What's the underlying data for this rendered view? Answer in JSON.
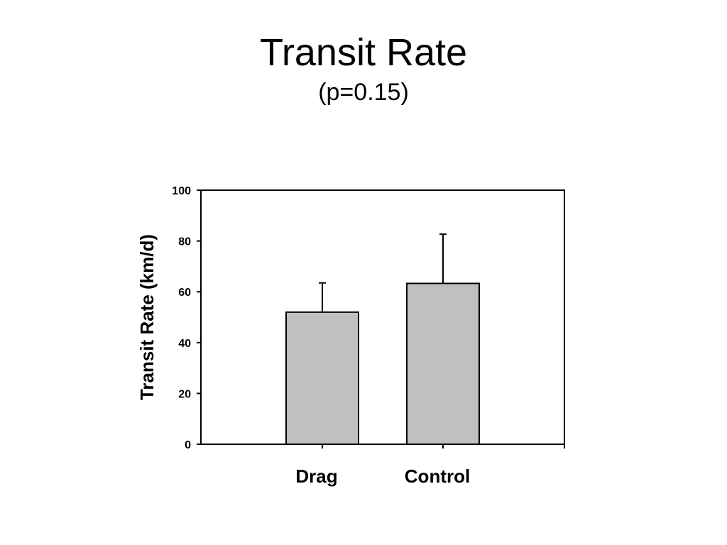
{
  "chart_data": {
    "type": "bar",
    "title": "Transit Rate",
    "subtitle": "(p=0.15)",
    "ylabel": "Transit Rate (km/d)",
    "xlabel": "",
    "categories": [
      "Drag",
      "Control"
    ],
    "values": [
      52,
      63.3
    ],
    "error_upper": [
      11.5,
      19.4
    ],
    "ylim": [
      0,
      100
    ],
    "yticks": [
      0,
      20,
      40,
      60,
      80,
      100
    ],
    "grid": false,
    "legend": "none",
    "bar_color": "#c0c0c0",
    "edge_color": "#000000"
  }
}
